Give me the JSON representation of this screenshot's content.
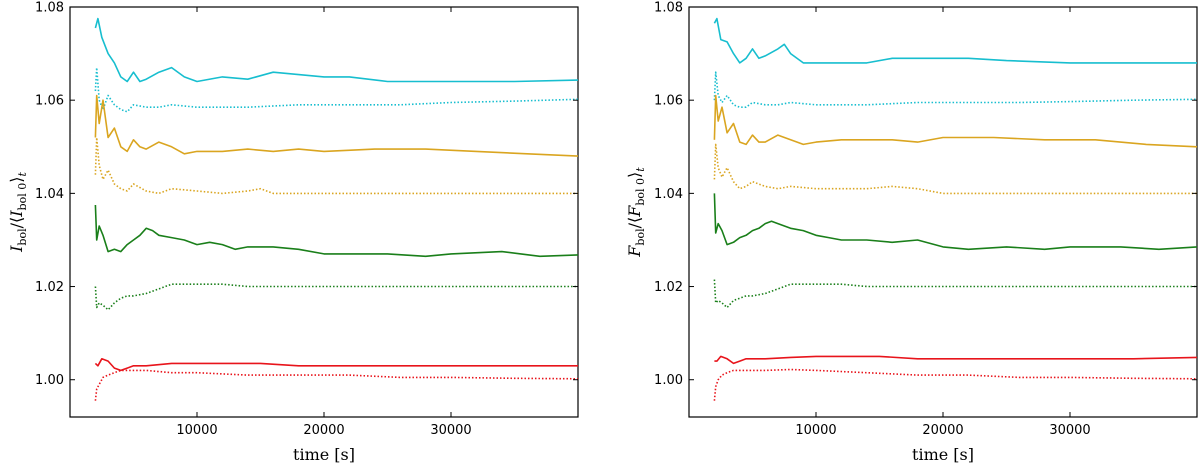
{
  "chart_data": [
    {
      "type": "line",
      "panel": "left",
      "xlabel": "time [s]",
      "ylabel_main": "I",
      "ylabel_sub": "bol",
      "ylabel_avg_sub": "bol 0",
      "ylabel_t": "t",
      "xlim": [
        0,
        40000
      ],
      "ylim": [
        0.992,
        1.08
      ],
      "xticks": [
        10000,
        20000,
        30000
      ],
      "xtick_labels": [
        "10000",
        "20000",
        "30000"
      ],
      "yticks": [
        1.0,
        1.02,
        1.04,
        1.06,
        1.08
      ],
      "ytick_labels": [
        "1.00",
        "1.02",
        "1.04",
        "1.06",
        "1.08"
      ],
      "series": [
        {
          "name": "cyan-solid",
          "color": "#17becf",
          "style": "solid",
          "x": [
            2000,
            2200,
            2500,
            3000,
            3500,
            4000,
            4500,
            5000,
            5500,
            6000,
            7000,
            8000,
            9000,
            10000,
            12000,
            14000,
            16000,
            18000,
            20000,
            22000,
            25000,
            28000,
            30000,
            35000,
            40000
          ],
          "y": [
            1.0755,
            1.0775,
            1.0735,
            1.07,
            1.068,
            1.065,
            1.064,
            1.066,
            1.064,
            1.0645,
            1.066,
            1.067,
            1.065,
            1.064,
            1.065,
            1.0645,
            1.066,
            1.0655,
            1.065,
            1.065,
            1.064,
            1.064,
            1.064,
            1.064,
            1.0643
          ]
        },
        {
          "name": "cyan-dotted",
          "color": "#17becf",
          "style": "dotted",
          "x": [
            2000,
            2100,
            2300,
            2600,
            3000,
            3500,
            4000,
            4500,
            5000,
            6000,
            7000,
            8000,
            10000,
            14000,
            18000,
            22000,
            26000,
            30000,
            35000,
            40000
          ],
          "y": [
            1.062,
            1.067,
            1.06,
            1.058,
            1.061,
            1.059,
            1.058,
            1.0575,
            1.059,
            1.0585,
            1.0585,
            1.059,
            1.0585,
            1.0585,
            1.059,
            1.059,
            1.059,
            1.0595,
            1.0598,
            1.0602
          ]
        },
        {
          "name": "orange-solid",
          "color": "#daa520",
          "style": "solid",
          "x": [
            2000,
            2100,
            2300,
            2600,
            3000,
            3500,
            4000,
            4500,
            5000,
            5500,
            6000,
            7000,
            8000,
            9000,
            10000,
            12000,
            14000,
            16000,
            18000,
            20000,
            24000,
            28000,
            32000,
            36000,
            40000
          ],
          "y": [
            1.052,
            1.061,
            1.055,
            1.06,
            1.052,
            1.054,
            1.05,
            1.049,
            1.0515,
            1.05,
            1.0495,
            1.051,
            1.05,
            1.0485,
            1.049,
            1.049,
            1.0495,
            1.049,
            1.0495,
            1.049,
            1.0495,
            1.0495,
            1.049,
            1.0485,
            1.048
          ]
        },
        {
          "name": "orange-dotted",
          "color": "#daa520",
          "style": "dotted",
          "x": [
            2000,
            2100,
            2300,
            2600,
            3000,
            3500,
            4000,
            4500,
            5000,
            6000,
            7000,
            8000,
            10000,
            12000,
            14000,
            15000,
            16000,
            18000,
            20000,
            24000,
            28000,
            32000,
            36000,
            40000
          ],
          "y": [
            1.044,
            1.052,
            1.046,
            1.043,
            1.045,
            1.042,
            1.041,
            1.0405,
            1.042,
            1.0405,
            1.04,
            1.041,
            1.0405,
            1.04,
            1.0405,
            1.041,
            1.04,
            1.04,
            1.04,
            1.04,
            1.04,
            1.04,
            1.04,
            1.04
          ]
        },
        {
          "name": "green-solid",
          "color": "#1a7f1a",
          "style": "solid",
          "x": [
            2000,
            2100,
            2300,
            2600,
            3000,
            3500,
            4000,
            4500,
            5000,
            5500,
            6000,
            6500,
            7000,
            8000,
            9000,
            10000,
            11000,
            12000,
            13000,
            14000,
            16000,
            18000,
            20000,
            22000,
            25000,
            28000,
            30000,
            34000,
            37000,
            40000
          ],
          "y": [
            1.0375,
            1.03,
            1.033,
            1.031,
            1.0275,
            1.028,
            1.0275,
            1.029,
            1.03,
            1.031,
            1.0325,
            1.032,
            1.031,
            1.0305,
            1.03,
            1.029,
            1.0295,
            1.029,
            1.028,
            1.0285,
            1.0285,
            1.028,
            1.027,
            1.027,
            1.027,
            1.0265,
            1.027,
            1.0275,
            1.0265,
            1.0268
          ]
        },
        {
          "name": "green-dotted",
          "color": "#1a7f1a",
          "style": "dotted",
          "x": [
            2000,
            2100,
            2300,
            2600,
            3000,
            3500,
            4000,
            4500,
            5000,
            6000,
            7000,
            8000,
            9000,
            10000,
            12000,
            14000,
            16000,
            20000,
            24000,
            28000,
            32000,
            36000,
            40000
          ],
          "y": [
            1.02,
            1.0155,
            1.0165,
            1.016,
            1.015,
            1.0165,
            1.0175,
            1.018,
            1.018,
            1.0185,
            1.0195,
            1.0205,
            1.0205,
            1.0205,
            1.0205,
            1.02,
            1.02,
            1.02,
            1.02,
            1.02,
            1.02,
            1.02,
            1.02
          ]
        },
        {
          "name": "red-solid",
          "color": "#e8141b",
          "style": "solid",
          "x": [
            2000,
            2200,
            2500,
            3000,
            3500,
            4000,
            4500,
            5000,
            6000,
            8000,
            10000,
            12000,
            15000,
            18000,
            20000,
            25000,
            30000,
            35000,
            40000
          ],
          "y": [
            1.0035,
            1.003,
            1.0045,
            1.004,
            1.0025,
            1.002,
            1.0025,
            1.003,
            1.003,
            1.0035,
            1.0035,
            1.0035,
            1.0035,
            1.003,
            1.003,
            1.003,
            1.003,
            1.003,
            1.003
          ]
        },
        {
          "name": "red-dotted",
          "color": "#e8141b",
          "style": "dotted",
          "x": [
            2000,
            2100,
            2300,
            2600,
            3000,
            3500,
            4000,
            5000,
            6000,
            8000,
            10000,
            14000,
            18000,
            22000,
            26000,
            30000,
            35000,
            40000
          ],
          "y": [
            0.9955,
            0.998,
            0.999,
            1.0005,
            1.001,
            1.0015,
            1.002,
            1.002,
            1.002,
            1.0015,
            1.0015,
            1.001,
            1.001,
            1.001,
            1.0005,
            1.0005,
            1.0003,
            1.0002
          ]
        }
      ]
    },
    {
      "type": "line",
      "panel": "right",
      "xlabel": "time [s]",
      "ylabel_main": "F",
      "ylabel_sub": "bol",
      "ylabel_avg_sub": "bol 0",
      "ylabel_t": "t",
      "xlim": [
        0,
        40000
      ],
      "ylim": [
        0.992,
        1.08
      ],
      "xticks": [
        10000,
        20000,
        30000
      ],
      "xtick_labels": [
        "10000",
        "20000",
        "30000"
      ],
      "yticks": [
        1.0,
        1.02,
        1.04,
        1.06,
        1.08
      ],
      "ytick_labels": [
        "1.00",
        "1.02",
        "1.04",
        "1.06",
        "1.08"
      ],
      "series": [
        {
          "name": "cyan-solid",
          "color": "#17becf",
          "style": "solid",
          "x": [
            2000,
            2200,
            2500,
            3000,
            3500,
            4000,
            4500,
            5000,
            5500,
            6000,
            7000,
            7500,
            8000,
            9000,
            10000,
            12000,
            14000,
            16000,
            18000,
            20000,
            22000,
            25000,
            30000,
            35000,
            40000
          ],
          "y": [
            1.0765,
            1.0775,
            1.073,
            1.0725,
            1.07,
            1.068,
            1.069,
            1.071,
            1.069,
            1.0695,
            1.071,
            1.072,
            1.07,
            1.068,
            1.068,
            1.068,
            1.068,
            1.069,
            1.069,
            1.069,
            1.069,
            1.0685,
            1.068,
            1.068,
            1.068
          ]
        },
        {
          "name": "cyan-dotted",
          "color": "#17becf",
          "style": "dotted",
          "x": [
            2000,
            2100,
            2300,
            2600,
            3000,
            3500,
            4000,
            4500,
            5000,
            6000,
            7000,
            8000,
            10000,
            14000,
            18000,
            22000,
            26000,
            30000,
            35000,
            40000
          ],
          "y": [
            1.06,
            1.066,
            1.061,
            1.0595,
            1.061,
            1.059,
            1.0585,
            1.0585,
            1.0595,
            1.059,
            1.059,
            1.0595,
            1.059,
            1.059,
            1.0595,
            1.0595,
            1.0595,
            1.0597,
            1.06,
            1.0602
          ]
        },
        {
          "name": "orange-solid",
          "color": "#daa520",
          "style": "solid",
          "x": [
            2000,
            2100,
            2300,
            2600,
            3000,
            3500,
            4000,
            4500,
            5000,
            5500,
            6000,
            7000,
            8000,
            9000,
            10000,
            12000,
            14000,
            16000,
            18000,
            20000,
            24000,
            28000,
            32000,
            36000,
            40000
          ],
          "y": [
            1.0515,
            1.061,
            1.0555,
            1.0585,
            1.053,
            1.055,
            1.051,
            1.0505,
            1.0525,
            1.051,
            1.051,
            1.0525,
            1.0515,
            1.0505,
            1.051,
            1.0515,
            1.0515,
            1.0515,
            1.051,
            1.052,
            1.052,
            1.0515,
            1.0515,
            1.0505,
            1.05
          ]
        },
        {
          "name": "orange-dotted",
          "color": "#daa520",
          "style": "dotted",
          "x": [
            2000,
            2100,
            2300,
            2600,
            3000,
            3500,
            4000,
            4500,
            5000,
            6000,
            7000,
            8000,
            10000,
            12000,
            14000,
            16000,
            18000,
            20000,
            24000,
            28000,
            32000,
            36000,
            40000
          ],
          "y": [
            1.043,
            1.0505,
            1.0455,
            1.0435,
            1.0455,
            1.0425,
            1.041,
            1.0415,
            1.0425,
            1.0415,
            1.041,
            1.0415,
            1.041,
            1.041,
            1.041,
            1.0415,
            1.041,
            1.04,
            1.04,
            1.04,
            1.04,
            1.04,
            1.04
          ]
        },
        {
          "name": "green-solid",
          "color": "#1a7f1a",
          "style": "solid",
          "x": [
            2000,
            2100,
            2300,
            2600,
            3000,
            3500,
            4000,
            4500,
            5000,
            5500,
            6000,
            6500,
            7000,
            8000,
            9000,
            10000,
            11000,
            12000,
            14000,
            16000,
            18000,
            20000,
            22000,
            25000,
            28000,
            30000,
            34000,
            37000,
            40000
          ],
          "y": [
            1.04,
            1.0315,
            1.0335,
            1.032,
            1.029,
            1.0295,
            1.0305,
            1.031,
            1.032,
            1.0325,
            1.0335,
            1.034,
            1.0335,
            1.0325,
            1.032,
            1.031,
            1.0305,
            1.03,
            1.03,
            1.0295,
            1.03,
            1.0285,
            1.028,
            1.0285,
            1.028,
            1.0285,
            1.0285,
            1.028,
            1.0285
          ]
        },
        {
          "name": "green-dotted",
          "color": "#1a7f1a",
          "style": "dotted",
          "x": [
            2000,
            2100,
            2300,
            2600,
            3000,
            3500,
            4000,
            4500,
            5000,
            6000,
            7000,
            8000,
            9000,
            10000,
            12000,
            14000,
            16000,
            20000,
            24000,
            28000,
            32000,
            36000,
            40000
          ],
          "y": [
            1.0215,
            1.0165,
            1.017,
            1.0165,
            1.0155,
            1.017,
            1.0175,
            1.018,
            1.018,
            1.0185,
            1.0195,
            1.0205,
            1.0205,
            1.0205,
            1.0205,
            1.02,
            1.02,
            1.02,
            1.02,
            1.02,
            1.02,
            1.02,
            1.02
          ]
        },
        {
          "name": "red-solid",
          "color": "#e8141b",
          "style": "solid",
          "x": [
            2000,
            2200,
            2500,
            3000,
            3500,
            4000,
            4500,
            5000,
            6000,
            8000,
            10000,
            12000,
            15000,
            18000,
            20000,
            25000,
            30000,
            35000,
            40000
          ],
          "y": [
            1.004,
            1.004,
            1.005,
            1.0045,
            1.0035,
            1.004,
            1.0045,
            1.0045,
            1.0045,
            1.0048,
            1.005,
            1.005,
            1.005,
            1.0045,
            1.0045,
            1.0045,
            1.0045,
            1.0045,
            1.0048
          ]
        },
        {
          "name": "red-dotted",
          "color": "#e8141b",
          "style": "dotted",
          "x": [
            2000,
            2100,
            2300,
            2600,
            3000,
            3500,
            4000,
            5000,
            6000,
            8000,
            10000,
            14000,
            18000,
            22000,
            26000,
            30000,
            35000,
            40000
          ],
          "y": [
            0.9955,
            0.9985,
            1.0,
            1.001,
            1.0015,
            1.002,
            1.002,
            1.002,
            1.002,
            1.0022,
            1.002,
            1.0015,
            1.001,
            1.001,
            1.0005,
            1.0005,
            1.0003,
            1.0002
          ]
        }
      ]
    }
  ]
}
